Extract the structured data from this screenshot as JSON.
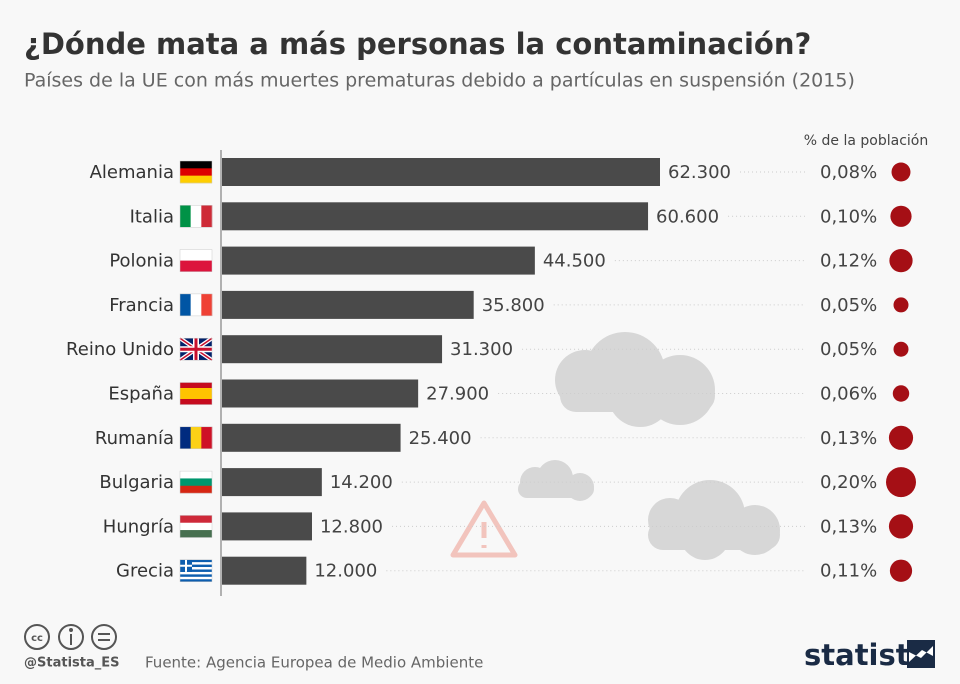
{
  "chart_data": {
    "type": "bar",
    "orientation": "horizontal",
    "title": "¿Dónde mata a más personas la contaminación?",
    "subtitle": "Países de la UE con más muertes prematuras debido a partículas en suspensión (2015)",
    "categories": [
      "Alemania",
      "Italia",
      "Polonia",
      "Francia",
      "Reino Unido",
      "España",
      "Rumanía",
      "Bulgaria",
      "Hungría",
      "Grecia"
    ],
    "values": [
      62300,
      60600,
      44500,
      35800,
      31300,
      27900,
      25400,
      14200,
      12800,
      12000
    ],
    "value_labels": [
      "62.300",
      "60.600",
      "44.500",
      "35.800",
      "31.300",
      "27.900",
      "25.400",
      "14.200",
      "12.800",
      "12.000"
    ],
    "color": "#4a4a4a",
    "population_share": {
      "title": "% de la población",
      "values": [
        0.08,
        0.1,
        0.12,
        0.05,
        0.05,
        0.06,
        0.13,
        0.2,
        0.13,
        0.11
      ],
      "value_labels": [
        "0,08%",
        "0,10%",
        "0,12%",
        "0,05%",
        "0,05%",
        "0,06%",
        "0,13%",
        "0,20%",
        "0,13%",
        "0,11%"
      ],
      "color": "#a50f15"
    }
  },
  "footer": {
    "credit": "@Statista_ES",
    "source": "Fuente: Agencia Europea de Medio Ambiente",
    "brand": "statista"
  }
}
